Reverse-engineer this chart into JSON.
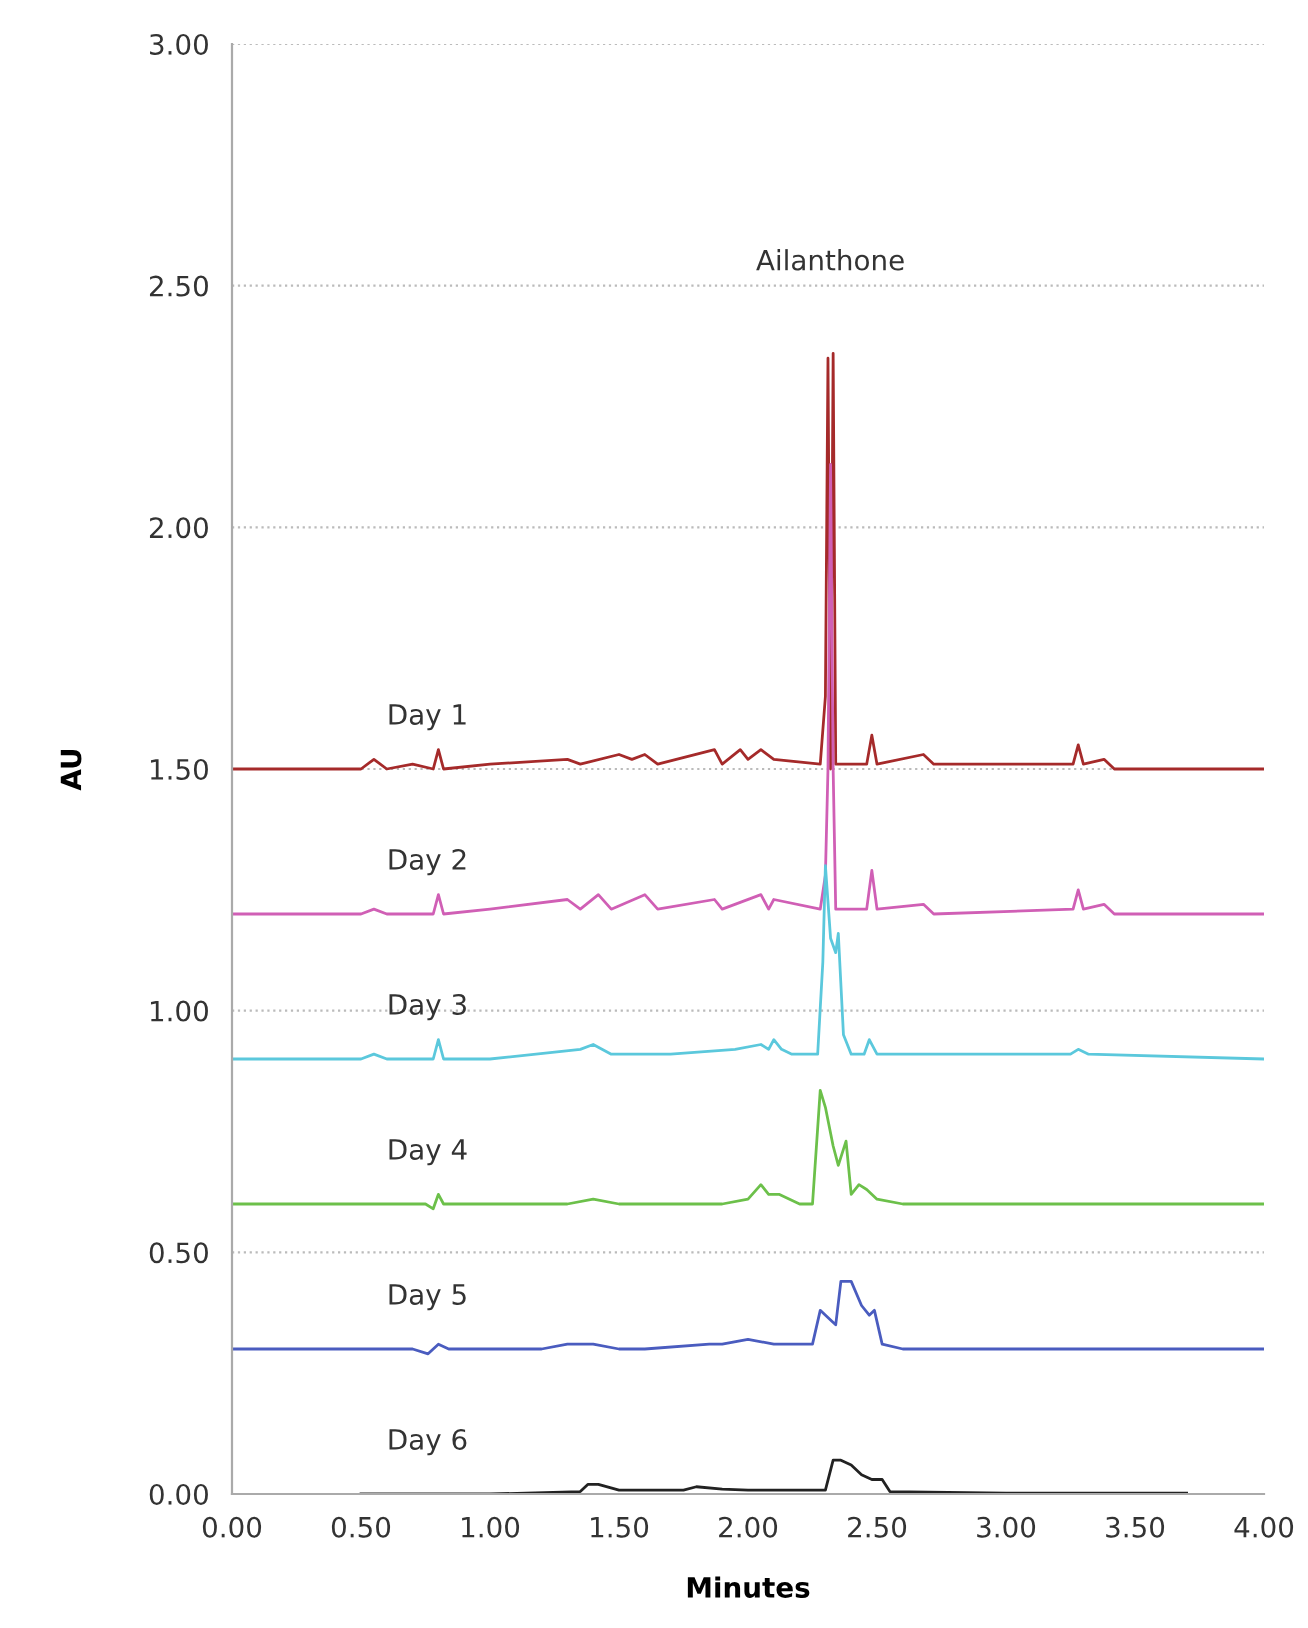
{
  "chart_data": {
    "type": "line",
    "xlabel": "Minutes",
    "ylabel": "AU",
    "xlim": [
      0,
      4
    ],
    "ylim": [
      0,
      3
    ],
    "xticks": [
      {
        "value": 0,
        "label": "0.00"
      },
      {
        "value": 0.5,
        "label": "0.50"
      },
      {
        "value": 1,
        "label": "1.00"
      },
      {
        "value": 1.5,
        "label": "1.50"
      },
      {
        "value": 2,
        "label": "2.00"
      },
      {
        "value": 2.5,
        "label": "2.50"
      },
      {
        "value": 3,
        "label": "3.00"
      },
      {
        "value": 3.5,
        "label": "3.50"
      },
      {
        "value": 4,
        "label": "4.00"
      }
    ],
    "yticks": [
      {
        "value": 0,
        "label": "0.00"
      },
      {
        "value": 0.5,
        "label": "0.50"
      },
      {
        "value": 1,
        "label": "1.00"
      },
      {
        "value": 1.5,
        "label": "1.50"
      },
      {
        "value": 2,
        "label": "2.00"
      },
      {
        "value": 2.5,
        "label": "2.50"
      },
      {
        "value": 3,
        "label": "3.00"
      }
    ],
    "grid": "y",
    "legend": false,
    "marker": "none",
    "line_style": "solid",
    "annotations": [
      "Ailanthone"
    ],
    "series": [
      {
        "name": "Day 1",
        "color": "#a52a2a",
        "x": [
          0,
          0.5,
          0.55,
          0.6,
          0.7,
          0.78,
          0.8,
          0.82,
          1.0,
          1.3,
          1.35,
          1.5,
          1.55,
          1.6,
          1.65,
          1.87,
          1.9,
          1.97,
          2.0,
          2.05,
          2.1,
          2.28,
          2.3,
          2.31,
          2.32,
          2.33,
          2.34,
          2.4,
          2.46,
          2.48,
          2.5,
          2.68,
          2.72,
          3.26,
          3.28,
          3.3,
          3.38,
          3.42,
          4.0
        ],
        "values": [
          1.5,
          1.5,
          1.52,
          1.5,
          1.51,
          1.5,
          1.54,
          1.5,
          1.51,
          1.52,
          1.51,
          1.53,
          1.52,
          1.53,
          1.51,
          1.54,
          1.51,
          1.54,
          1.52,
          1.54,
          1.52,
          1.51,
          1.65,
          2.35,
          1.5,
          2.36,
          1.51,
          1.51,
          1.51,
          1.57,
          1.51,
          1.53,
          1.51,
          1.51,
          1.55,
          1.51,
          1.52,
          1.5,
          1.5
        ]
      },
      {
        "name": "Day 2",
        "color": "#d05fb5",
        "x": [
          0,
          0.5,
          0.55,
          0.6,
          0.78,
          0.8,
          0.82,
          1.0,
          1.3,
          1.35,
          1.42,
          1.47,
          1.6,
          1.65,
          1.87,
          1.9,
          2.05,
          2.08,
          2.1,
          2.28,
          2.3,
          2.31,
          2.32,
          2.33,
          2.34,
          2.4,
          2.46,
          2.48,
          2.5,
          2.68,
          2.72,
          3.26,
          3.28,
          3.3,
          3.38,
          3.42,
          4.0
        ],
        "values": [
          1.2,
          1.2,
          1.21,
          1.2,
          1.2,
          1.24,
          1.2,
          1.21,
          1.23,
          1.21,
          1.24,
          1.21,
          1.24,
          1.21,
          1.23,
          1.21,
          1.24,
          1.21,
          1.23,
          1.21,
          1.28,
          1.5,
          2.13,
          1.5,
          1.21,
          1.21,
          1.21,
          1.29,
          1.21,
          1.22,
          1.2,
          1.21,
          1.25,
          1.21,
          1.22,
          1.2,
          1.2
        ]
      },
      {
        "name": "Day 3",
        "color": "#5bc8dc",
        "x": [
          0,
          0.5,
          0.55,
          0.6,
          0.78,
          0.8,
          0.82,
          1.0,
          1.35,
          1.4,
          1.47,
          1.7,
          1.95,
          2.05,
          2.08,
          2.1,
          2.13,
          2.17,
          2.27,
          2.29,
          2.3,
          2.32,
          2.34,
          2.35,
          2.37,
          2.4,
          2.45,
          2.47,
          2.5,
          2.6,
          3.25,
          3.28,
          3.32,
          4.0
        ],
        "values": [
          0.9,
          0.9,
          0.91,
          0.9,
          0.9,
          0.94,
          0.9,
          0.9,
          0.92,
          0.93,
          0.91,
          0.91,
          0.92,
          0.93,
          0.92,
          0.94,
          0.92,
          0.91,
          0.91,
          1.1,
          1.3,
          1.15,
          1.12,
          1.16,
          0.95,
          0.91,
          0.91,
          0.94,
          0.91,
          0.91,
          0.91,
          0.92,
          0.91,
          0.9
        ]
      },
      {
        "name": "Day 4",
        "color": "#6cc04a",
        "x": [
          0,
          0.6,
          0.75,
          0.78,
          0.8,
          0.82,
          1.0,
          1.3,
          1.4,
          1.5,
          1.9,
          2.0,
          2.05,
          2.08,
          2.12,
          2.2,
          2.25,
          2.28,
          2.3,
          2.33,
          2.35,
          2.38,
          2.4,
          2.43,
          2.46,
          2.5,
          2.6,
          3.0,
          4.0
        ],
        "values": [
          0.6,
          0.6,
          0.6,
          0.59,
          0.62,
          0.6,
          0.6,
          0.6,
          0.61,
          0.6,
          0.6,
          0.61,
          0.64,
          0.62,
          0.62,
          0.6,
          0.6,
          0.835,
          0.8,
          0.72,
          0.68,
          0.73,
          0.62,
          0.64,
          0.63,
          0.61,
          0.6,
          0.6,
          0.6
        ]
      },
      {
        "name": "Day 5",
        "color": "#4a5cbf",
        "x": [
          0,
          0.7,
          0.76,
          0.8,
          0.84,
          1.2,
          1.3,
          1.4,
          1.5,
          1.6,
          1.85,
          1.9,
          2.0,
          2.1,
          2.22,
          2.25,
          2.28,
          2.32,
          2.34,
          2.36,
          2.4,
          2.44,
          2.47,
          2.49,
          2.52,
          2.6,
          3.0,
          4.0
        ],
        "values": [
          0.3,
          0.3,
          0.29,
          0.31,
          0.3,
          0.3,
          0.31,
          0.31,
          0.3,
          0.3,
          0.31,
          0.31,
          0.32,
          0.31,
          0.31,
          0.31,
          0.38,
          0.36,
          0.35,
          0.44,
          0.44,
          0.39,
          0.37,
          0.38,
          0.31,
          0.3,
          0.3,
          0.3
        ]
      },
      {
        "name": "Day 6",
        "color": "#222222",
        "x": [
          0.5,
          0.8,
          1.0,
          1.35,
          1.38,
          1.42,
          1.5,
          1.75,
          1.8,
          1.9,
          2.0,
          2.3,
          2.33,
          2.36,
          2.4,
          2.44,
          2.48,
          2.52,
          2.55,
          3.0,
          3.7
        ],
        "values": [
          0,
          0,
          0,
          0.005,
          0.02,
          0.02,
          0.008,
          0.008,
          0.015,
          0.01,
          0.008,
          0.008,
          0.07,
          0.07,
          0.06,
          0.04,
          0.03,
          0.03,
          0.005,
          0.002,
          0.002
        ]
      }
    ]
  }
}
